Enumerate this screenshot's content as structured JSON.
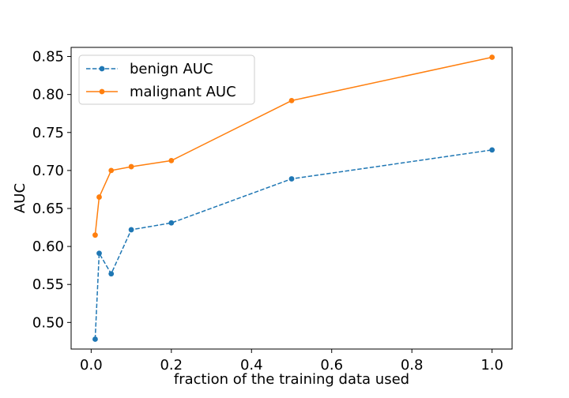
{
  "chart_data": {
    "type": "line",
    "xlabel": "fraction of the training data used",
    "ylabel": "AUC",
    "xlim": [
      -0.05,
      1.05
    ],
    "ylim": [
      0.465,
      0.862
    ],
    "xticks": [
      0.0,
      0.2,
      0.4,
      0.6,
      0.8,
      1.0
    ],
    "xtick_labels": [
      "0.0",
      "0.2",
      "0.4",
      "0.6",
      "0.8",
      "1.0"
    ],
    "yticks": [
      0.5,
      0.55,
      0.6,
      0.65,
      0.7,
      0.75,
      0.8,
      0.85
    ],
    "ytick_labels": [
      "0.50",
      "0.55",
      "0.60",
      "0.65",
      "0.70",
      "0.75",
      "0.80",
      "0.85"
    ],
    "grid": false,
    "legend_position": "top-left",
    "series": [
      {
        "name": "benign AUC",
        "color": "#1f77b4",
        "line_style": "dashed",
        "marker": "circle",
        "x": [
          0.01,
          0.02,
          0.05,
          0.1,
          0.2,
          0.5,
          1.0
        ],
        "y": [
          0.478,
          0.591,
          0.564,
          0.622,
          0.631,
          0.689,
          0.727
        ]
      },
      {
        "name": "malignant AUC",
        "color": "#ff7f0e",
        "line_style": "solid",
        "marker": "circle",
        "x": [
          0.01,
          0.02,
          0.05,
          0.1,
          0.2,
          0.5,
          1.0
        ],
        "y": [
          0.615,
          0.665,
          0.7,
          0.705,
          0.713,
          0.792,
          0.849
        ]
      }
    ]
  }
}
